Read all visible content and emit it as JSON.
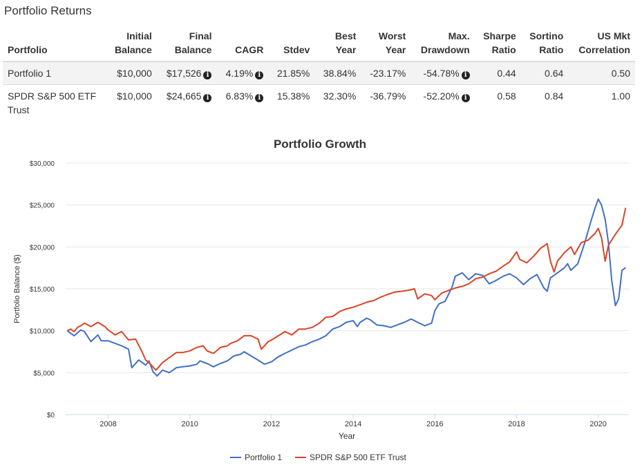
{
  "page": {
    "title": "Portfolio Returns"
  },
  "table": {
    "headers": [
      {
        "line1": "",
        "line2": "Portfolio"
      },
      {
        "line1": "Initial",
        "line2": "Balance"
      },
      {
        "line1": "Final",
        "line2": "Balance"
      },
      {
        "line1": "",
        "line2": "CAGR"
      },
      {
        "line1": "",
        "line2": "Stdev"
      },
      {
        "line1": "Best",
        "line2": "Year"
      },
      {
        "line1": "Worst",
        "line2": "Year"
      },
      {
        "line1": "Max.",
        "line2": "Drawdown"
      },
      {
        "line1": "Sharpe",
        "line2": "Ratio"
      },
      {
        "line1": "Sortino",
        "line2": "Ratio"
      },
      {
        "line1": "US Mkt",
        "line2": "Correlation"
      }
    ],
    "rows": [
      {
        "portfolio": "Portfolio 1",
        "initial_balance": "$10,000",
        "final_balance": "$17,526",
        "cagr": "4.19%",
        "stdev": "21.85%",
        "best_year": "38.84%",
        "worst_year": "-23.17%",
        "max_drawdown": "-54.78%",
        "sharpe": "0.44",
        "sortino": "0.64",
        "correlation": "0.50"
      },
      {
        "portfolio": "SPDR S&P 500 ETF Trust",
        "initial_balance": "$10,000",
        "final_balance": "$24,665",
        "cagr": "6.83%",
        "stdev": "15.38%",
        "best_year": "32.30%",
        "worst_year": "-36.79%",
        "max_drawdown": "-52.20%",
        "sharpe": "0.58",
        "sortino": "0.84",
        "correlation": "1.00"
      }
    ],
    "info_icon": "info-circle-icon"
  },
  "chart_data": {
    "type": "line",
    "title": "Portfolio Growth",
    "xlabel": "Year",
    "ylabel": "Portfolio Balance ($)",
    "xlim": [
      2006.96,
      2020.75
    ],
    "ylim": [
      0,
      30000
    ],
    "x_ticks": [
      2008,
      2010,
      2012,
      2014,
      2016,
      2018,
      2020
    ],
    "x_tick_labels": [
      "2008",
      "2010",
      "2012",
      "2014",
      "2016",
      "2018",
      "2020"
    ],
    "y_ticks": [
      0,
      5000,
      10000,
      15000,
      20000,
      25000,
      30000
    ],
    "y_tick_labels": [
      "$0",
      "$5,000",
      "$10,000",
      "$15,000",
      "$20,000",
      "$25,000",
      "$30,000"
    ],
    "grid": true,
    "legend_position": "bottom-center",
    "series": [
      {
        "name": "Portfolio 1",
        "color": "#3f6ec8",
        "points": [
          [
            2007.0,
            10000
          ],
          [
            2007.17,
            9400
          ],
          [
            2007.33,
            10100
          ],
          [
            2007.42,
            9900
          ],
          [
            2007.58,
            8700
          ],
          [
            2007.75,
            9500
          ],
          [
            2007.83,
            8800
          ],
          [
            2008.0,
            8800
          ],
          [
            2008.17,
            8500
          ],
          [
            2008.33,
            8200
          ],
          [
            2008.5,
            7800
          ],
          [
            2008.58,
            5600
          ],
          [
            2008.75,
            6500
          ],
          [
            2008.92,
            5900
          ],
          [
            2009.0,
            6400
          ],
          [
            2009.1,
            5100
          ],
          [
            2009.2,
            4600
          ],
          [
            2009.33,
            5300
          ],
          [
            2009.5,
            5000
          ],
          [
            2009.67,
            5600
          ],
          [
            2009.83,
            5700
          ],
          [
            2010.0,
            5800
          ],
          [
            2010.17,
            6000
          ],
          [
            2010.25,
            6400
          ],
          [
            2010.42,
            6100
          ],
          [
            2010.58,
            5700
          ],
          [
            2010.75,
            6100
          ],
          [
            2010.92,
            6400
          ],
          [
            2011.08,
            7000
          ],
          [
            2011.25,
            7200
          ],
          [
            2011.33,
            7500
          ],
          [
            2011.5,
            7000
          ],
          [
            2011.67,
            6500
          ],
          [
            2011.83,
            6000
          ],
          [
            2012.0,
            6300
          ],
          [
            2012.17,
            6900
          ],
          [
            2012.33,
            7300
          ],
          [
            2012.5,
            7700
          ],
          [
            2012.67,
            8100
          ],
          [
            2012.83,
            8300
          ],
          [
            2013.0,
            8700
          ],
          [
            2013.17,
            9000
          ],
          [
            2013.33,
            9400
          ],
          [
            2013.5,
            10200
          ],
          [
            2013.67,
            10500
          ],
          [
            2013.83,
            11000
          ],
          [
            2014.0,
            11200
          ],
          [
            2014.1,
            10500
          ],
          [
            2014.17,
            11000
          ],
          [
            2014.33,
            11500
          ],
          [
            2014.42,
            11300
          ],
          [
            2014.58,
            10700
          ],
          [
            2014.75,
            10600
          ],
          [
            2014.92,
            10400
          ],
          [
            2015.08,
            10700
          ],
          [
            2015.25,
            11000
          ],
          [
            2015.42,
            11400
          ],
          [
            2015.58,
            11000
          ],
          [
            2015.75,
            10600
          ],
          [
            2015.92,
            10900
          ],
          [
            2016.0,
            12400
          ],
          [
            2016.1,
            13200
          ],
          [
            2016.25,
            13500
          ],
          [
            2016.42,
            15200
          ],
          [
            2016.5,
            16500
          ],
          [
            2016.67,
            16900
          ],
          [
            2016.83,
            16100
          ],
          [
            2017.0,
            16800
          ],
          [
            2017.17,
            16600
          ],
          [
            2017.33,
            15600
          ],
          [
            2017.5,
            16000
          ],
          [
            2017.67,
            16500
          ],
          [
            2017.83,
            16800
          ],
          [
            2018.0,
            16300
          ],
          [
            2018.17,
            15500
          ],
          [
            2018.33,
            16200
          ],
          [
            2018.5,
            16700
          ],
          [
            2018.67,
            15100
          ],
          [
            2018.75,
            14700
          ],
          [
            2018.83,
            16300
          ],
          [
            2019.0,
            16900
          ],
          [
            2019.17,
            17500
          ],
          [
            2019.25,
            18000
          ],
          [
            2019.33,
            17200
          ],
          [
            2019.5,
            18000
          ],
          [
            2019.67,
            20500
          ],
          [
            2019.83,
            23200
          ],
          [
            2019.92,
            24600
          ],
          [
            2020.0,
            25700
          ],
          [
            2020.08,
            25000
          ],
          [
            2020.17,
            23300
          ],
          [
            2020.25,
            20500
          ],
          [
            2020.33,
            16000
          ],
          [
            2020.42,
            13000
          ],
          [
            2020.5,
            13800
          ],
          [
            2020.58,
            17200
          ],
          [
            2020.67,
            17526
          ]
        ]
      },
      {
        "name": "SPDR S&P 500 ETF Trust",
        "color": "#d94325",
        "points": [
          [
            2007.0,
            10000
          ],
          [
            2007.08,
            10200
          ],
          [
            2007.17,
            9900
          ],
          [
            2007.25,
            10400
          ],
          [
            2007.33,
            10600
          ],
          [
            2007.42,
            10900
          ],
          [
            2007.58,
            10500
          ],
          [
            2007.75,
            11000
          ],
          [
            2007.92,
            10500
          ],
          [
            2008.0,
            10100
          ],
          [
            2008.17,
            9500
          ],
          [
            2008.33,
            9900
          ],
          [
            2008.5,
            8900
          ],
          [
            2008.67,
            9000
          ],
          [
            2008.83,
            7500
          ],
          [
            2008.92,
            6500
          ],
          [
            2009.0,
            6200
          ],
          [
            2009.17,
            5300
          ],
          [
            2009.33,
            6200
          ],
          [
            2009.5,
            6800
          ],
          [
            2009.67,
            7400
          ],
          [
            2009.83,
            7400
          ],
          [
            2010.0,
            7600
          ],
          [
            2010.17,
            8000
          ],
          [
            2010.33,
            8200
          ],
          [
            2010.42,
            7600
          ],
          [
            2010.58,
            7300
          ],
          [
            2010.75,
            8000
          ],
          [
            2010.92,
            8200
          ],
          [
            2011.0,
            8500
          ],
          [
            2011.17,
            8800
          ],
          [
            2011.33,
            9400
          ],
          [
            2011.5,
            9400
          ],
          [
            2011.67,
            9000
          ],
          [
            2011.75,
            7800
          ],
          [
            2011.92,
            8700
          ],
          [
            2012.0,
            8900
          ],
          [
            2012.17,
            9400
          ],
          [
            2012.33,
            9900
          ],
          [
            2012.5,
            9500
          ],
          [
            2012.67,
            10200
          ],
          [
            2012.83,
            10200
          ],
          [
            2013.0,
            10400
          ],
          [
            2013.17,
            10900
          ],
          [
            2013.33,
            11600
          ],
          [
            2013.5,
            11700
          ],
          [
            2013.67,
            12300
          ],
          [
            2013.83,
            12600
          ],
          [
            2014.0,
            12800
          ],
          [
            2014.17,
            13100
          ],
          [
            2014.33,
            13400
          ],
          [
            2014.5,
            13600
          ],
          [
            2014.67,
            14000
          ],
          [
            2014.83,
            14300
          ],
          [
            2015.0,
            14600
          ],
          [
            2015.17,
            14700
          ],
          [
            2015.33,
            14800
          ],
          [
            2015.5,
            15000
          ],
          [
            2015.58,
            13800
          ],
          [
            2015.75,
            14400
          ],
          [
            2015.92,
            14200
          ],
          [
            2016.0,
            13700
          ],
          [
            2016.17,
            14500
          ],
          [
            2016.33,
            14800
          ],
          [
            2016.5,
            15100
          ],
          [
            2016.67,
            15300
          ],
          [
            2016.83,
            15600
          ],
          [
            2017.0,
            16200
          ],
          [
            2017.17,
            16400
          ],
          [
            2017.33,
            16800
          ],
          [
            2017.5,
            17100
          ],
          [
            2017.67,
            17700
          ],
          [
            2017.83,
            18200
          ],
          [
            2018.0,
            19400
          ],
          [
            2018.08,
            18500
          ],
          [
            2018.25,
            18100
          ],
          [
            2018.42,
            18900
          ],
          [
            2018.58,
            19800
          ],
          [
            2018.75,
            20400
          ],
          [
            2018.83,
            18300
          ],
          [
            2018.92,
            17000
          ],
          [
            2019.0,
            18300
          ],
          [
            2019.17,
            19300
          ],
          [
            2019.33,
            20000
          ],
          [
            2019.42,
            19100
          ],
          [
            2019.58,
            20500
          ],
          [
            2019.75,
            20800
          ],
          [
            2019.92,
            21600
          ],
          [
            2020.0,
            22200
          ],
          [
            2020.08,
            21100
          ],
          [
            2020.17,
            18300
          ],
          [
            2020.25,
            20200
          ],
          [
            2020.42,
            21500
          ],
          [
            2020.58,
            22600
          ],
          [
            2020.67,
            24665
          ]
        ]
      }
    ]
  }
}
